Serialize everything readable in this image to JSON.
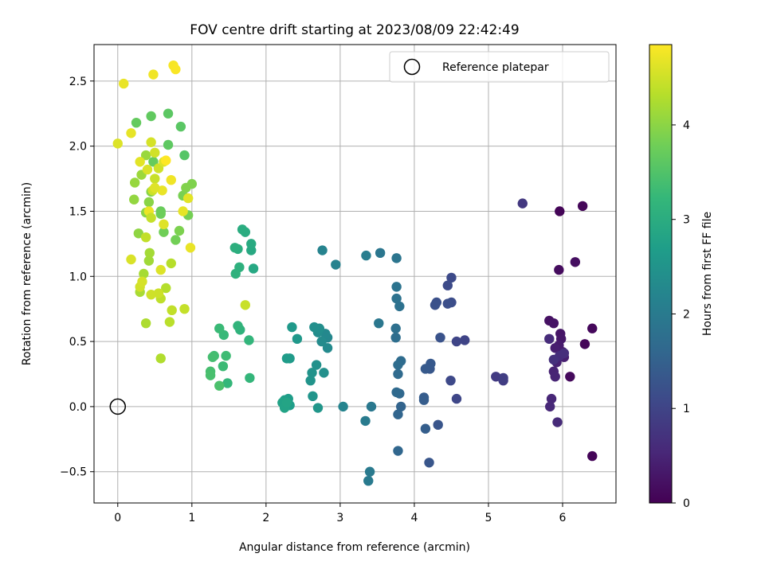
{
  "chart_data": {
    "type": "scatter",
    "title": "FOV centre drift starting at 2023/08/09 22:42:49",
    "xlabel": "Angular distance from reference (arcmin)",
    "ylabel": "Rotation from reference (arcmin)",
    "xlim": [
      -0.32,
      6.72
    ],
    "ylim": [
      -0.74,
      2.78
    ],
    "x_ticks": [
      0,
      1,
      2,
      3,
      4,
      5,
      6
    ],
    "x_tick_labels": [
      "0",
      "1",
      "2",
      "3",
      "4",
      "5",
      "6"
    ],
    "y_ticks": [
      -0.5,
      0.0,
      0.5,
      1.0,
      1.5,
      2.0,
      2.5
    ],
    "y_tick_labels": [
      "−0.5",
      "0.0",
      "0.5",
      "1.0",
      "1.5",
      "2.0",
      "2.5"
    ],
    "grid": true,
    "legend": {
      "placement": "top-right",
      "entries": [
        {
          "label": "Reference platepar",
          "marker": "open-circle"
        }
      ]
    },
    "reference_point": {
      "x": 0.0,
      "y": 0.0
    },
    "colorbar": {
      "label": "Hours from first FF file",
      "colormap": "viridis",
      "range": [
        0,
        4.85
      ],
      "ticks": [
        0,
        1,
        2,
        3,
        4
      ],
      "tick_labels": [
        "0",
        "1",
        "2",
        "3",
        "4"
      ]
    },
    "colormap_stops": [
      "#440154",
      "#482878",
      "#3e4989",
      "#31688e",
      "#26828e",
      "#1f9e89",
      "#35b779",
      "#6ece58",
      "#b5de2b",
      "#fde725"
    ],
    "points": [
      [
        5.96,
        1.5,
        0.05
      ],
      [
        6.27,
        1.54,
        0.08
      ],
      [
        6.4,
        -0.38,
        0.06
      ],
      [
        6.4,
        0.6,
        0.1
      ],
      [
        6.3,
        0.48,
        0.07
      ],
      [
        6.1,
        0.23,
        0.12
      ],
      [
        6.17,
        1.11,
        0.18
      ],
      [
        5.95,
        1.05,
        0.15
      ],
      [
        5.82,
        0.66,
        0.22
      ],
      [
        5.88,
        0.64,
        0.25
      ],
      [
        5.97,
        0.56,
        0.28
      ],
      [
        5.98,
        0.52,
        0.3
      ],
      [
        6.0,
        0.42,
        0.33
      ],
      [
        5.95,
        0.47,
        0.36
      ],
      [
        5.9,
        0.45,
        0.4
      ],
      [
        6.02,
        0.38,
        0.42
      ],
      [
        5.92,
        0.34,
        0.45
      ],
      [
        5.88,
        0.27,
        0.48
      ],
      [
        5.9,
        0.23,
        0.5
      ],
      [
        5.85,
        0.06,
        0.52
      ],
      [
        5.83,
        0.0,
        0.55
      ],
      [
        5.93,
        -0.12,
        0.58
      ],
      [
        5.82,
        0.52,
        0.6
      ],
      [
        5.96,
        0.39,
        0.62
      ],
      [
        6.02,
        0.41,
        0.65
      ],
      [
        5.88,
        0.36,
        0.68
      ],
      [
        5.46,
        1.56,
        0.8
      ],
      [
        5.1,
        0.23,
        0.85
      ],
      [
        5.2,
        0.2,
        0.88
      ],
      [
        5.2,
        0.22,
        0.9
      ],
      [
        4.68,
        0.51,
        1.0
      ],
      [
        4.57,
        0.5,
        1.02
      ],
      [
        4.57,
        0.06,
        1.05
      ],
      [
        4.49,
        0.2,
        1.08
      ],
      [
        4.5,
        0.99,
        1.1
      ],
      [
        4.45,
        0.93,
        1.12
      ],
      [
        4.5,
        0.8,
        1.15
      ],
      [
        4.45,
        0.79,
        1.18
      ],
      [
        4.3,
        0.8,
        1.2
      ],
      [
        4.28,
        0.78,
        1.22
      ],
      [
        4.35,
        0.53,
        1.25
      ],
      [
        4.32,
        -0.14,
        1.28
      ],
      [
        4.2,
        -0.43,
        1.3
      ],
      [
        4.21,
        0.29,
        1.32
      ],
      [
        4.22,
        0.33,
        1.35
      ],
      [
        4.15,
        0.29,
        1.38
      ],
      [
        4.13,
        0.07,
        1.4
      ],
      [
        4.13,
        0.05,
        1.42
      ],
      [
        4.15,
        -0.17,
        1.45
      ],
      [
        3.82,
        0.0,
        1.55
      ],
      [
        3.78,
        -0.06,
        1.58
      ],
      [
        3.78,
        -0.34,
        1.6
      ],
      [
        3.8,
        0.1,
        1.62
      ],
      [
        3.76,
        0.11,
        1.65
      ],
      [
        3.78,
        0.25,
        1.68
      ],
      [
        3.82,
        0.35,
        1.7
      ],
      [
        3.78,
        0.32,
        1.72
      ],
      [
        3.75,
        0.53,
        1.75
      ],
      [
        3.75,
        0.6,
        1.78
      ],
      [
        3.8,
        0.77,
        1.8
      ],
      [
        3.76,
        0.83,
        1.82
      ],
      [
        3.76,
        0.92,
        1.85
      ],
      [
        3.76,
        1.14,
        1.88
      ],
      [
        3.54,
        1.18,
        1.9
      ],
      [
        3.52,
        0.64,
        1.92
      ],
      [
        3.42,
        0.0,
        1.95
      ],
      [
        3.4,
        -0.5,
        1.98
      ],
      [
        3.38,
        -0.57,
        2.0
      ],
      [
        3.34,
        -0.11,
        2.02
      ],
      [
        3.35,
        1.16,
        2.05
      ],
      [
        2.94,
        1.09,
        2.15
      ],
      [
        2.76,
        1.2,
        2.18
      ],
      [
        3.04,
        0.0,
        2.2
      ],
      [
        2.83,
        0.53,
        2.25
      ],
      [
        2.8,
        0.56,
        2.28
      ],
      [
        2.83,
        0.45,
        2.3
      ],
      [
        2.75,
        0.5,
        2.32
      ],
      [
        2.7,
        0.57,
        2.35
      ],
      [
        2.72,
        0.6,
        2.38
      ],
      [
        2.65,
        0.61,
        2.4
      ],
      [
        2.78,
        0.26,
        2.42
      ],
      [
        2.68,
        0.32,
        2.45
      ],
      [
        2.62,
        0.26,
        2.48
      ],
      [
        2.6,
        0.2,
        2.5
      ],
      [
        2.63,
        0.08,
        2.52
      ],
      [
        2.7,
        -0.01,
        2.55
      ],
      [
        2.42,
        0.52,
        2.58
      ],
      [
        2.35,
        0.61,
        2.6
      ],
      [
        2.32,
        0.37,
        2.62
      ],
      [
        2.28,
        0.37,
        2.65
      ],
      [
        2.3,
        0.06,
        2.68
      ],
      [
        2.32,
        0.01,
        2.7
      ],
      [
        2.25,
        0.05,
        2.72
      ],
      [
        2.25,
        0.02,
        2.75
      ],
      [
        2.22,
        0.03,
        2.78
      ],
      [
        2.25,
        -0.01,
        2.8
      ],
      [
        2.28,
        0.03,
        2.82
      ],
      [
        1.83,
        1.06,
        2.9
      ],
      [
        1.8,
        1.2,
        2.92
      ],
      [
        1.8,
        1.25,
        2.95
      ],
      [
        1.72,
        1.34,
        2.98
      ],
      [
        1.68,
        1.36,
        3.0
      ],
      [
        1.62,
        1.21,
        3.02
      ],
      [
        1.58,
        1.22,
        3.05
      ],
      [
        1.64,
        1.07,
        3.08
      ],
      [
        1.59,
        1.02,
        3.1
      ],
      [
        1.65,
        0.59,
        3.12
      ],
      [
        1.62,
        0.62,
        3.15
      ],
      [
        1.77,
        0.51,
        3.18
      ],
      [
        1.78,
        0.22,
        3.2
      ],
      [
        1.48,
        0.18,
        3.22
      ],
      [
        1.43,
        0.55,
        3.25
      ],
      [
        1.37,
        0.6,
        3.28
      ],
      [
        1.42,
        0.31,
        3.3
      ],
      [
        1.46,
        0.39,
        3.32
      ],
      [
        1.3,
        0.39,
        3.35
      ],
      [
        1.28,
        0.38,
        3.38
      ],
      [
        1.25,
        0.27,
        3.4
      ],
      [
        1.25,
        0.24,
        3.42
      ],
      [
        1.37,
        0.16,
        3.45
      ],
      [
        0.9,
        1.93,
        3.55
      ],
      [
        0.85,
        2.15,
        3.58
      ],
      [
        0.68,
        2.25,
        3.6
      ],
      [
        0.68,
        2.01,
        3.62
      ],
      [
        0.45,
        2.23,
        3.65
      ],
      [
        0.25,
        2.18,
        3.68
      ],
      [
        0.48,
        1.88,
        3.7
      ],
      [
        0.58,
        1.5,
        3.72
      ],
      [
        0.58,
        1.48,
        3.75
      ],
      [
        0.62,
        1.34,
        3.78
      ],
      [
        0.78,
        1.28,
        3.8
      ],
      [
        0.95,
        1.47,
        3.82
      ],
      [
        0.88,
        1.62,
        3.85
      ],
      [
        0.83,
        1.35,
        3.88
      ],
      [
        1.0,
        1.71,
        3.9
      ],
      [
        0.92,
        1.68,
        3.92
      ],
      [
        0.45,
        1.65,
        3.95
      ],
      [
        0.42,
        1.57,
        3.98
      ],
      [
        0.38,
        1.49,
        4.0
      ],
      [
        0.28,
        1.33,
        4.02
      ],
      [
        0.22,
        1.59,
        4.05
      ],
      [
        0.23,
        1.72,
        4.08
      ],
      [
        0.38,
        1.93,
        4.1
      ],
      [
        0.32,
        1.78,
        4.12
      ],
      [
        0.42,
        1.12,
        4.15
      ],
      [
        0.43,
        1.18,
        4.18
      ],
      [
        0.35,
        1.02,
        4.2
      ],
      [
        0.3,
        0.88,
        4.22
      ],
      [
        0.38,
        0.64,
        4.25
      ],
      [
        0.58,
        0.37,
        4.28
      ],
      [
        0.65,
        0.91,
        4.3
      ],
      [
        0.72,
        1.1,
        4.32
      ],
      [
        0.7,
        0.65,
        4.35
      ],
      [
        0.58,
        0.83,
        4.38
      ],
      [
        0.73,
        0.74,
        4.4
      ],
      [
        0.9,
        0.75,
        4.42
      ],
      [
        1.72,
        0.78,
        4.45
      ],
      [
        0.55,
        0.87,
        4.48
      ],
      [
        0.45,
        0.86,
        4.5
      ],
      [
        0.3,
        0.92,
        4.52
      ],
      [
        0.33,
        0.96,
        4.55
      ],
      [
        0.18,
        1.13,
        4.58
      ],
      [
        0.58,
        1.05,
        4.6
      ],
      [
        0.62,
        1.4,
        4.62
      ],
      [
        0.95,
        1.6,
        4.65
      ],
      [
        0.88,
        1.5,
        4.68
      ],
      [
        0.98,
        1.22,
        4.7
      ],
      [
        0.42,
        1.5,
        4.72
      ],
      [
        0.38,
        1.3,
        4.4
      ],
      [
        0.45,
        1.45,
        4.42
      ],
      [
        0.5,
        1.75,
        4.45
      ],
      [
        0.47,
        1.66,
        4.48
      ],
      [
        0.55,
        1.83,
        4.5
      ],
      [
        0.5,
        1.95,
        4.52
      ],
      [
        0.45,
        2.03,
        4.55
      ],
      [
        0.4,
        1.82,
        4.58
      ],
      [
        0.62,
        1.88,
        4.6
      ],
      [
        0.72,
        1.74,
        4.75
      ],
      [
        0.6,
        1.66,
        4.7
      ],
      [
        0.5,
        1.68,
        4.62
      ],
      [
        0.3,
        1.88,
        4.65
      ],
      [
        0.0,
        2.02,
        4.6
      ],
      [
        0.18,
        2.1,
        4.68
      ],
      [
        0.08,
        2.48,
        4.7
      ],
      [
        0.48,
        2.55,
        4.75
      ],
      [
        0.75,
        2.62,
        4.8
      ],
      [
        0.78,
        2.59,
        4.82
      ],
      [
        0.65,
        1.89,
        4.85
      ]
    ]
  }
}
